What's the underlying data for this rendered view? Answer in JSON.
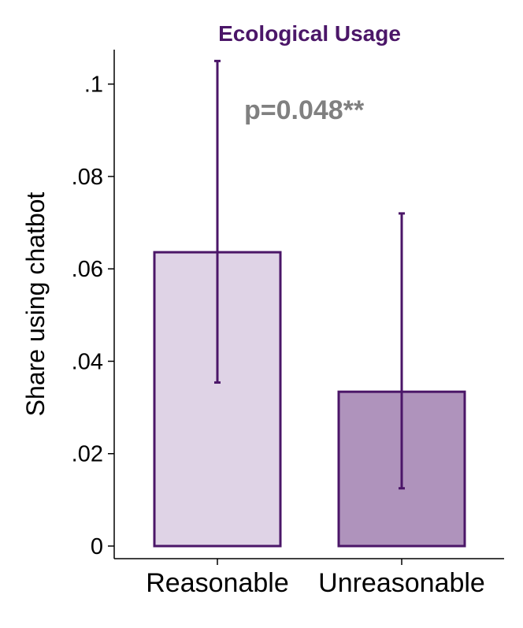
{
  "chart_data": {
    "type": "bar",
    "title": "Ecological Usage",
    "xlabel": "",
    "ylabel": "Share using chatbot",
    "categories": [
      "Reasonable",
      "Unreasonable"
    ],
    "values": [
      0.0636,
      0.0334
    ],
    "error_low": [
      0.0354,
      0.0125
    ],
    "error_high": [
      0.105,
      0.072
    ],
    "ylim": [
      0,
      0.105
    ],
    "yticks": [
      0,
      0.02,
      0.04,
      0.06,
      0.08,
      0.1
    ],
    "ytick_labels": [
      "0",
      ".02",
      ".04",
      ".06",
      ".08",
      ".1"
    ],
    "annotation": "p=0.048**",
    "colors": {
      "bar_fills": [
        "#dfd3e6",
        "#af93bc"
      ],
      "bar_stroke": "#4b1668",
      "error_bar": "#4b1668",
      "title": "#4b1668",
      "annotation": "#808080"
    },
    "grid": false,
    "legend": "none"
  }
}
